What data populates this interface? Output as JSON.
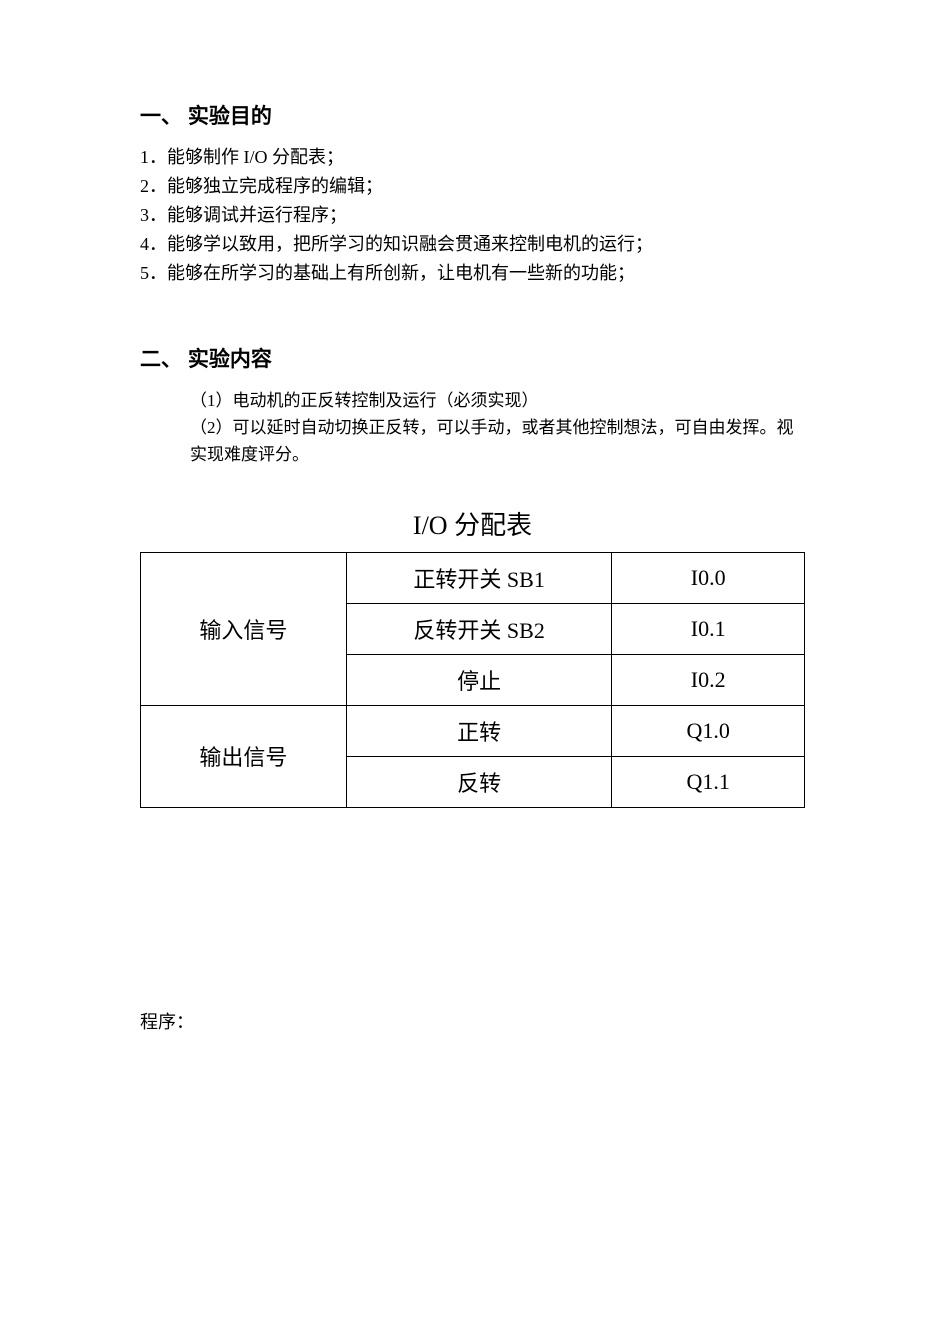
{
  "section1": {
    "heading": "一、 实验目的",
    "items": [
      "1．能够制作 I/O 分配表；",
      "2．能够独立完成程序的编辑；",
      "3．能够调试并运行程序；",
      "4．能够学以致用，把所学习的知识融会贯通来控制电机的运行；",
      "5．能够在所学习的基础上有所创新，让电机有一些新的功能；"
    ]
  },
  "section2": {
    "heading": "二、 实验内容",
    "items": [
      "（1）电动机的正反转控制及运行（必须实现）",
      "（2）可以延时自动切换正反转，可以手动，或者其他控制想法，可自由发挥。视实现难度评分。"
    ]
  },
  "io_table": {
    "title": "I/O 分配表",
    "column_widths": [
      "31%",
      "40%",
      "29%"
    ],
    "border_color": "#000000",
    "background_color": "#ffffff",
    "font_size_pt": 16,
    "rows": [
      {
        "group": "输入信号",
        "desc": "正转开关 SB1",
        "addr": "I0.0"
      },
      {
        "group": "",
        "desc": "反转开关 SB2",
        "addr": "I0.1"
      },
      {
        "group": "",
        "desc": "停止",
        "addr": "I0.2"
      },
      {
        "group": "输出信号",
        "desc": "正转",
        "addr": "Q1.0"
      },
      {
        "group": "",
        "desc": "反转",
        "addr": "Q1.1"
      }
    ],
    "group1_label": "输入信号",
    "group1_rowspan": 3,
    "group2_label": "输出信号",
    "group2_rowspan": 2
  },
  "program_label": "程序："
}
